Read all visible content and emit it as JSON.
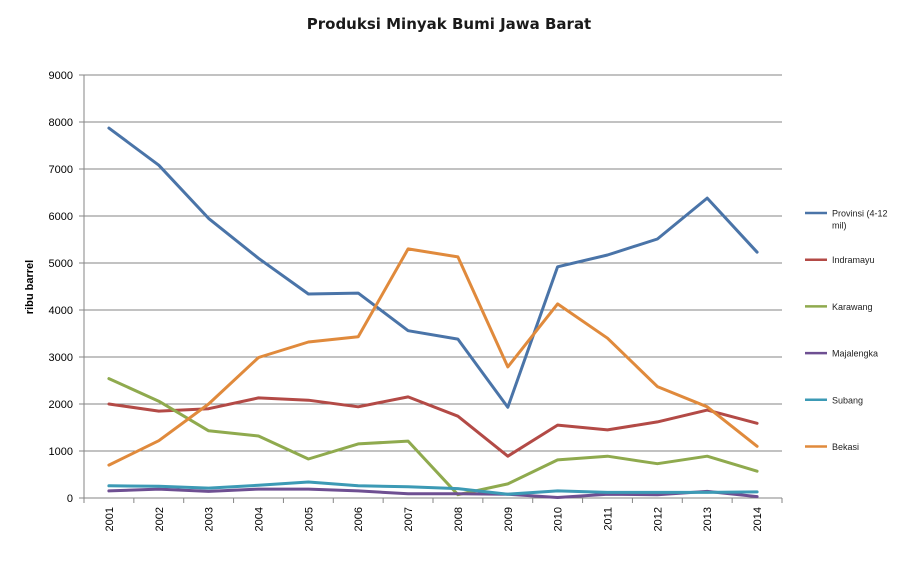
{
  "chart_data": {
    "type": "line",
    "title": "Produksi Minyak Bumi Jawa Barat",
    "xlabel": "",
    "ylabel": "ribu barrel",
    "ylim": [
      0,
      9000
    ],
    "yticks": [
      0,
      1000,
      2000,
      3000,
      4000,
      5000,
      6000,
      7000,
      8000,
      9000
    ],
    "grid": true,
    "legend_position": "right",
    "categories": [
      "2001",
      "2002",
      "2003",
      "2004",
      "2005",
      "2006",
      "2007",
      "2008",
      "2009",
      "2010",
      "2011",
      "2012",
      "2013",
      "2014"
    ],
    "series": [
      {
        "name_lines": [
          "Provinsi (4-12",
          "mil)"
        ],
        "color": "#4a74a8",
        "values": [
          7870,
          7080,
          5950,
          5100,
          4340,
          4360,
          3560,
          3380,
          1930,
          4920,
          5170,
          5510,
          6380,
          5230
        ]
      },
      {
        "name_lines": [
          "Indramayu"
        ],
        "color": "#b34a46",
        "values": [
          2000,
          1850,
          1900,
          2130,
          2080,
          1940,
          2150,
          1740,
          890,
          1550,
          1450,
          1620,
          1870,
          1590
        ]
      },
      {
        "name_lines": [
          "Karawang"
        ],
        "color": "#8faa4e",
        "values": [
          2540,
          2060,
          1430,
          1320,
          830,
          1150,
          1210,
          70,
          300,
          810,
          890,
          730,
          890,
          570
        ]
      },
      {
        "name_lines": [
          "Majalengka"
        ],
        "color": "#6e4f92",
        "values": [
          150,
          190,
          140,
          190,
          190,
          150,
          90,
          90,
          80,
          10,
          80,
          70,
          140,
          30
        ]
      },
      {
        "name_lines": [
          "Subang"
        ],
        "color": "#3c9ab5",
        "values": [
          260,
          250,
          210,
          270,
          340,
          260,
          240,
          200,
          80,
          150,
          120,
          120,
          120,
          130
        ]
      },
      {
        "name_lines": [
          "Bekasi"
        ],
        "color": "#e08a3c",
        "values": [
          700,
          1220,
          2000,
          2990,
          3320,
          3430,
          5300,
          5130,
          2790,
          4130,
          3400,
          2370,
          1940,
          1100
        ]
      }
    ]
  }
}
